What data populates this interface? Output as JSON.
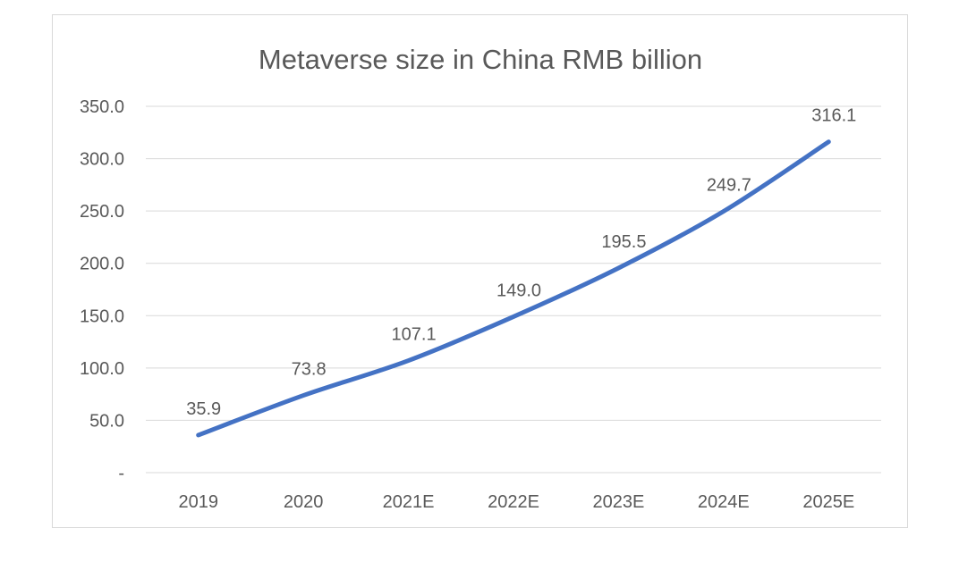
{
  "chart_data": {
    "type": "line",
    "title": "Metaverse size in China RMB billion",
    "xlabel": "",
    "ylabel": "",
    "categories": [
      "2019",
      "2020",
      "2021E",
      "2022E",
      "2023E",
      "2024E",
      "2025E"
    ],
    "series": [
      {
        "values": [
          35.9,
          73.8,
          107.1,
          149.0,
          195.5,
          249.7,
          316.1
        ],
        "labels": [
          "35.9",
          "73.8",
          "107.1",
          "149.0",
          "195.5",
          "249.7",
          "316.1"
        ]
      }
    ],
    "ylim": [
      0,
      350
    ],
    "yticks": [
      {
        "value": 0,
        "label": "-"
      },
      {
        "value": 50,
        "label": "50.0"
      },
      {
        "value": 100,
        "label": "100.0"
      },
      {
        "value": 150,
        "label": "150.0"
      },
      {
        "value": 200,
        "label": "200.0"
      },
      {
        "value": 250,
        "label": "250.0"
      },
      {
        "value": 300,
        "label": "300.0"
      },
      {
        "value": 350,
        "label": "350.0"
      }
    ],
    "grid": true,
    "legend": "none",
    "line_color": "#4472c4",
    "smooth": true
  }
}
